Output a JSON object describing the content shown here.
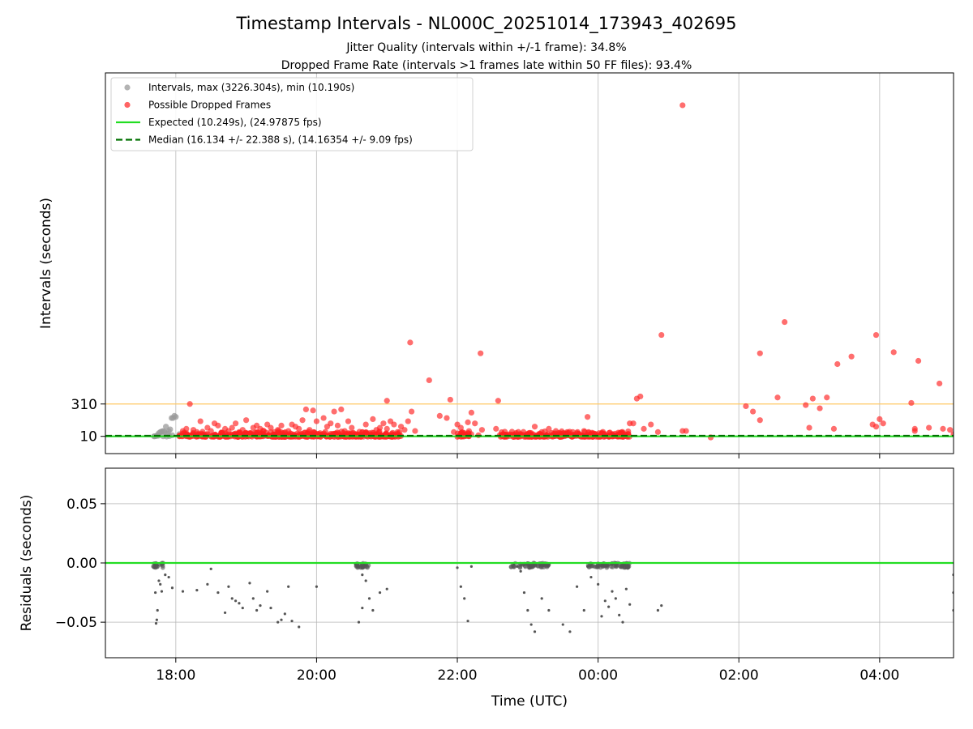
{
  "chart_data": {
    "type": "scatter",
    "title": "Timestamp Intervals - NL000C_20251014_173943_402695",
    "subtitle_lines": [
      "Jitter Quality (intervals within +/-1 frame): 34.8%",
      "Dropped Frame Rate (intervals >1 frames late within 50 FF files): 93.4%"
    ],
    "xlabel": "Time (UTC)",
    "x_tick_labels": [
      "18:00",
      "20:00",
      "22:00",
      "00:00",
      "02:00",
      "04:00"
    ],
    "x_range_hours": [
      17.0,
      29.05
    ],
    "x_tick_hours": [
      18,
      20,
      22,
      24,
      26,
      28
    ],
    "top_panel": {
      "ylabel": "Intervals (seconds)",
      "y_tick_labels": [
        "10",
        "310"
      ],
      "y_tick_values": [
        10,
        310
      ],
      "y_range": [
        -150,
        3380
      ],
      "reference_line_value": 310,
      "reference_line_color": "#ffc864",
      "expected_value": 10.249,
      "median_value": 16.134,
      "legend_position": "upper-left",
      "legend": [
        {
          "label": "Intervals, max (3226.304s), min (10.190s)",
          "kind": "marker",
          "color": "#999999"
        },
        {
          "label": "Possible Dropped Frames",
          "kind": "marker",
          "color": "#ff3030"
        },
        {
          "label": "Expected (10.249s), (24.97875 fps)",
          "kind": "line",
          "color": "#22dd22"
        },
        {
          "label": "Median (16.134 +/- 22.388 s), (14.16354 +/- 9.09 fps)",
          "kind": "dashed",
          "color": "#007000"
        }
      ],
      "normal_points": [
        [
          17.7,
          10
        ],
        [
          17.72,
          12
        ],
        [
          17.74,
          22
        ],
        [
          17.76,
          40
        ],
        [
          17.78,
          50
        ],
        [
          17.8,
          55
        ],
        [
          17.82,
          60
        ],
        [
          17.84,
          52
        ],
        [
          17.86,
          100
        ],
        [
          17.88,
          35
        ],
        [
          17.9,
          60
        ],
        [
          17.92,
          75
        ],
        [
          17.94,
          180
        ],
        [
          17.96,
          180
        ],
        [
          17.98,
          200
        ],
        [
          18.0,
          190
        ],
        [
          17.75,
          15
        ],
        [
          17.82,
          10
        ],
        [
          17.95,
          20
        ],
        [
          18.05,
          30
        ],
        [
          17.69,
          10
        ],
        [
          17.87,
          8
        ],
        [
          17.91,
          12
        ]
      ],
      "dropped_points": [
        [
          18.1,
          60
        ],
        [
          18.15,
          80
        ],
        [
          18.2,
          310
        ],
        [
          18.25,
          70
        ],
        [
          18.3,
          50
        ],
        [
          18.35,
          150
        ],
        [
          18.45,
          90
        ],
        [
          18.5,
          60
        ],
        [
          18.55,
          130
        ],
        [
          18.6,
          110
        ],
        [
          18.65,
          40
        ],
        [
          18.7,
          80
        ],
        [
          18.75,
          60
        ],
        [
          18.8,
          90
        ],
        [
          18.85,
          130
        ],
        [
          18.9,
          50
        ],
        [
          18.95,
          70
        ],
        [
          19.0,
          160
        ],
        [
          19.05,
          40
        ],
        [
          19.1,
          90
        ],
        [
          19.15,
          110
        ],
        [
          19.2,
          80
        ],
        [
          19.25,
          60
        ],
        [
          19.3,
          120
        ],
        [
          19.35,
          90
        ],
        [
          19.4,
          50
        ],
        [
          19.45,
          70
        ],
        [
          19.5,
          110
        ],
        [
          19.55,
          40
        ],
        [
          19.6,
          60
        ],
        [
          19.65,
          120
        ],
        [
          19.7,
          100
        ],
        [
          19.75,
          80
        ],
        [
          19.8,
          160
        ],
        [
          19.85,
          260
        ],
        [
          19.9,
          70
        ],
        [
          19.95,
          250
        ],
        [
          20.0,
          150
        ],
        [
          20.05,
          40
        ],
        [
          20.1,
          180
        ],
        [
          20.15,
          100
        ],
        [
          20.2,
          130
        ],
        [
          20.25,
          240
        ],
        [
          20.3,
          110
        ],
        [
          20.35,
          260
        ],
        [
          20.4,
          60
        ],
        [
          20.45,
          150
        ],
        [
          20.5,
          90
        ],
        [
          20.55,
          30
        ],
        [
          20.6,
          20
        ],
        [
          20.65,
          50
        ],
        [
          20.7,
          120
        ],
        [
          20.75,
          40
        ],
        [
          20.8,
          170
        ],
        [
          20.85,
          70
        ],
        [
          20.9,
          90
        ],
        [
          20.95,
          130
        ],
        [
          21.0,
          80
        ],
        [
          21.05,
          150
        ],
        [
          21.1,
          120
        ],
        [
          21.15,
          50
        ],
        [
          21.2,
          100
        ],
        [
          21.25,
          70
        ],
        [
          21.3,
          150
        ],
        [
          21.35,
          240
        ],
        [
          21.4,
          60
        ],
        [
          21.0,
          340
        ],
        [
          20.98,
          30
        ],
        [
          21.33,
          880
        ],
        [
          21.6,
          530
        ],
        [
          21.75,
          200
        ],
        [
          21.85,
          180
        ],
        [
          21.9,
          350
        ],
        [
          21.95,
          50
        ],
        [
          22.0,
          120
        ],
        [
          22.05,
          90
        ],
        [
          22.1,
          40
        ],
        [
          22.15,
          140
        ],
        [
          22.2,
          230
        ],
        [
          22.25,
          130
        ],
        [
          22.3,
          20
        ],
        [
          22.35,
          70
        ],
        [
          22.33,
          780
        ],
        [
          22.55,
          80
        ],
        [
          22.58,
          340
        ],
        [
          22.65,
          30
        ],
        [
          22.8,
          20
        ],
        [
          22.9,
          30
        ],
        [
          23.0,
          15
        ],
        [
          23.05,
          40
        ],
        [
          23.1,
          100
        ],
        [
          23.2,
          50
        ],
        [
          23.3,
          80
        ],
        [
          23.4,
          60
        ],
        [
          23.5,
          40
        ],
        [
          23.6,
          20
        ],
        [
          23.7,
          40
        ],
        [
          23.8,
          60
        ],
        [
          23.85,
          190
        ],
        [
          23.9,
          30
        ],
        [
          24.0,
          20
        ],
        [
          24.05,
          30
        ],
        [
          24.1,
          15
        ],
        [
          24.2,
          20
        ],
        [
          24.3,
          30
        ],
        [
          24.4,
          20
        ],
        [
          24.45,
          130
        ],
        [
          24.5,
          130
        ],
        [
          24.55,
          360
        ],
        [
          24.6,
          380
        ],
        [
          24.65,
          80
        ],
        [
          24.75,
          120
        ],
        [
          24.85,
          50
        ],
        [
          24.9,
          950
        ],
        [
          25.2,
          60
        ],
        [
          25.25,
          60
        ],
        [
          25.2,
          3080
        ],
        [
          25.6,
          0
        ],
        [
          26.1,
          290
        ],
        [
          26.2,
          240
        ],
        [
          26.3,
          160
        ],
        [
          26.3,
          780
        ],
        [
          26.55,
          370
        ],
        [
          26.65,
          1070
        ],
        [
          26.95,
          300
        ],
        [
          27.0,
          90
        ],
        [
          27.05,
          360
        ],
        [
          27.15,
          270
        ],
        [
          27.25,
          370
        ],
        [
          27.35,
          80
        ],
        [
          27.4,
          680
        ],
        [
          27.6,
          750
        ],
        [
          27.9,
          120
        ],
        [
          27.95,
          100
        ],
        [
          28.0,
          170
        ],
        [
          28.05,
          130
        ],
        [
          27.95,
          950
        ],
        [
          28.2,
          790
        ],
        [
          28.45,
          320
        ],
        [
          28.5,
          80
        ],
        [
          28.5,
          60
        ],
        [
          28.55,
          710
        ],
        [
          28.7,
          90
        ],
        [
          28.85,
          500
        ],
        [
          28.9,
          80
        ],
        [
          29.0,
          70
        ],
        [
          29.05,
          30
        ]
      ],
      "dense_dropped_ranges": [
        [
          18.05,
          18.45
        ],
        [
          18.5,
          19.0
        ],
        [
          19.0,
          19.5
        ],
        [
          19.5,
          20.0
        ],
        [
          20.0,
          20.5
        ],
        [
          20.5,
          21.2
        ],
        [
          22.0,
          22.2
        ],
        [
          22.6,
          23.2
        ],
        [
          23.2,
          23.7
        ],
        [
          23.7,
          24.0
        ],
        [
          24.0,
          24.45
        ]
      ]
    },
    "bottom_panel": {
      "ylabel": "Residuals (seconds)",
      "y_tick_labels": [
        "0.05",
        "0.00",
        "−0.05"
      ],
      "y_tick_values": [
        0.05,
        0.0,
        -0.05
      ],
      "y_range": [
        -0.08,
        0.08
      ],
      "zero_line_color": "#22dd22",
      "points": [
        [
          17.7,
          -0.001
        ],
        [
          17.72,
          0.0
        ],
        [
          17.74,
          -0.002
        ],
        [
          17.71,
          -0.025
        ],
        [
          17.72,
          -0.051
        ],
        [
          17.74,
          -0.04
        ],
        [
          17.76,
          -0.015
        ],
        [
          17.78,
          -0.018
        ],
        [
          17.8,
          -0.024
        ],
        [
          17.73,
          -0.048
        ],
        [
          17.85,
          -0.01
        ],
        [
          17.9,
          -0.012
        ],
        [
          17.95,
          -0.021
        ],
        [
          18.1,
          -0.024
        ],
        [
          18.3,
          -0.023
        ],
        [
          18.45,
          -0.018
        ],
        [
          18.5,
          -0.005
        ],
        [
          18.6,
          -0.025
        ],
        [
          18.7,
          -0.042
        ],
        [
          18.75,
          -0.02
        ],
        [
          18.8,
          -0.03
        ],
        [
          18.85,
          -0.032
        ],
        [
          18.9,
          -0.034
        ],
        [
          18.95,
          -0.038
        ],
        [
          19.05,
          -0.017
        ],
        [
          19.1,
          -0.03
        ],
        [
          19.15,
          -0.04
        ],
        [
          19.2,
          -0.036
        ],
        [
          19.3,
          -0.024
        ],
        [
          19.35,
          -0.038
        ],
        [
          19.45,
          -0.05
        ],
        [
          19.5,
          -0.048
        ],
        [
          19.55,
          -0.043
        ],
        [
          19.6,
          -0.02
        ],
        [
          19.65,
          -0.049
        ],
        [
          19.75,
          -0.054
        ],
        [
          20.0,
          -0.02
        ],
        [
          20.55,
          -0.001
        ],
        [
          20.6,
          -0.003
        ],
        [
          20.65,
          -0.01
        ],
        [
          20.7,
          -0.015
        ],
        [
          20.75,
          -0.03
        ],
        [
          20.6,
          -0.05
        ],
        [
          20.65,
          -0.038
        ],
        [
          20.8,
          -0.04
        ],
        [
          20.9,
          -0.025
        ],
        [
          20.7,
          -0.002
        ],
        [
          21.0,
          -0.022
        ],
        [
          22.0,
          -0.004
        ],
        [
          22.05,
          -0.02
        ],
        [
          22.1,
          -0.03
        ],
        [
          22.15,
          -0.049
        ],
        [
          22.2,
          -0.003
        ],
        [
          22.8,
          -0.001
        ],
        [
          22.85,
          -0.003
        ],
        [
          22.9,
          -0.007
        ],
        [
          22.95,
          -0.025
        ],
        [
          23.0,
          -0.04
        ],
        [
          23.05,
          -0.052
        ],
        [
          23.1,
          -0.058
        ],
        [
          23.2,
          -0.03
        ],
        [
          23.25,
          -0.002
        ],
        [
          23.3,
          -0.04
        ],
        [
          23.5,
          -0.052
        ],
        [
          23.6,
          -0.058
        ],
        [
          23.7,
          -0.02
        ],
        [
          23.8,
          -0.04
        ],
        [
          23.85,
          -0.003
        ],
        [
          23.9,
          -0.012
        ],
        [
          24.0,
          -0.018
        ],
        [
          24.05,
          -0.045
        ],
        [
          24.1,
          -0.032
        ],
        [
          24.15,
          -0.037
        ],
        [
          24.2,
          -0.024
        ],
        [
          24.25,
          -0.03
        ],
        [
          24.3,
          -0.044
        ],
        [
          24.35,
          -0.05
        ],
        [
          24.4,
          -0.022
        ],
        [
          24.45,
          -0.035
        ],
        [
          24.1,
          -0.002
        ],
        [
          24.2,
          -0.001
        ],
        [
          24.3,
          0.0
        ],
        [
          24.4,
          -0.004
        ],
        [
          24.0,
          0.0
        ],
        [
          24.9,
          -0.036
        ],
        [
          24.85,
          -0.04
        ],
        [
          29.05,
          -0.01
        ],
        [
          29.05,
          -0.025
        ],
        [
          29.05,
          -0.04
        ]
      ],
      "dense_ranges": [
        [
          17.68,
          17.82
        ],
        [
          20.55,
          20.75
        ],
        [
          22.75,
          23.3
        ],
        [
          23.85,
          24.45
        ]
      ]
    }
  }
}
